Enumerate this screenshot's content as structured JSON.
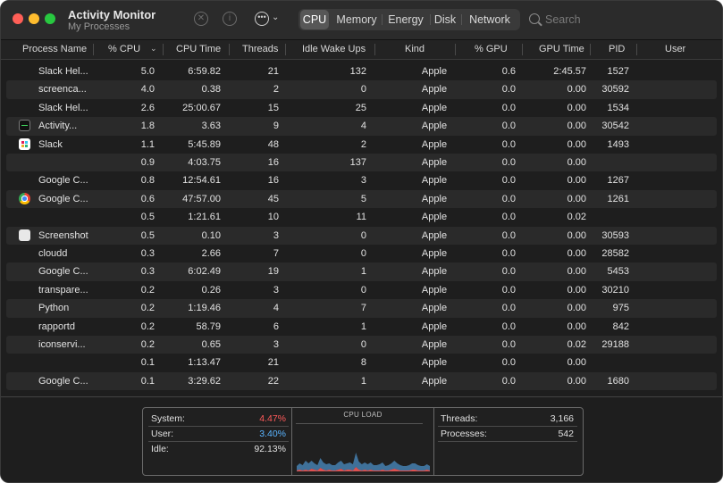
{
  "window": {
    "title": "Activity Monitor",
    "subtitle": "My Processes"
  },
  "toolbar": {
    "stop_icon": "stop-process-icon",
    "info_icon": "inspect-info-icon",
    "more_icon": "ellipsis-more-icon",
    "more_glyph": "•••",
    "chevron_glyph": "⌄"
  },
  "tabs": [
    {
      "label": "CPU",
      "active": true
    },
    {
      "label": "Memory",
      "active": false
    },
    {
      "label": "Energy",
      "active": false
    },
    {
      "label": "Disk",
      "active": false
    },
    {
      "label": "Network",
      "active": false
    }
  ],
  "search": {
    "placeholder": "Search",
    "value": ""
  },
  "columns": {
    "name": "Process Name",
    "cpu": "% CPU",
    "cpu_time": "CPU Time",
    "threads": "Threads",
    "idle_wake_ups": "Idle Wake Ups",
    "kind": "Kind",
    "gpu": "% GPU",
    "gpu_time": "GPU Time",
    "pid": "PID",
    "user": "User",
    "sort_indicator": "⌄"
  },
  "processes": [
    {
      "icon": "",
      "name": "Slack Hel...",
      "cpu": "5.0",
      "cpu_time": "6:59.82",
      "threads": "21",
      "idle": "132",
      "kind": "Apple",
      "gpu": "0.6",
      "gpu_time": "2:45.57",
      "pid": "1527"
    },
    {
      "icon": "",
      "name": "screenca...",
      "cpu": "4.0",
      "cpu_time": "0.38",
      "threads": "2",
      "idle": "0",
      "kind": "Apple",
      "gpu": "0.0",
      "gpu_time": "0.00",
      "pid": "30592"
    },
    {
      "icon": "",
      "name": "Slack Hel...",
      "cpu": "2.6",
      "cpu_time": "25:00.67",
      "threads": "15",
      "idle": "25",
      "kind": "Apple",
      "gpu": "0.0",
      "gpu_time": "0.00",
      "pid": "1534"
    },
    {
      "icon": "activity-monitor-icon",
      "name": "Activity...",
      "cpu": "1.8",
      "cpu_time": "3.63",
      "threads": "9",
      "idle": "4",
      "kind": "Apple",
      "gpu": "0.0",
      "gpu_time": "0.00",
      "pid": "30542"
    },
    {
      "icon": "slack-icon",
      "name": "Slack",
      "cpu": "1.1",
      "cpu_time": "5:45.89",
      "threads": "48",
      "idle": "2",
      "kind": "Apple",
      "gpu": "0.0",
      "gpu_time": "0.00",
      "pid": "1493"
    },
    {
      "icon": "",
      "name": "",
      "cpu": "0.9",
      "cpu_time": "4:03.75",
      "threads": "16",
      "idle": "137",
      "kind": "Apple",
      "gpu": "0.0",
      "gpu_time": "0.00",
      "pid": ""
    },
    {
      "icon": "",
      "name": "Google C...",
      "cpu": "0.8",
      "cpu_time": "12:54.61",
      "threads": "16",
      "idle": "3",
      "kind": "Apple",
      "gpu": "0.0",
      "gpu_time": "0.00",
      "pid": "1267"
    },
    {
      "icon": "chrome-icon",
      "name": "Google C...",
      "cpu": "0.6",
      "cpu_time": "47:57.00",
      "threads": "45",
      "idle": "5",
      "kind": "Apple",
      "gpu": "0.0",
      "gpu_time": "0.00",
      "pid": "1261"
    },
    {
      "icon": "",
      "name": "",
      "cpu": "0.5",
      "cpu_time": "1:21.61",
      "threads": "10",
      "idle": "11",
      "kind": "Apple",
      "gpu": "0.0",
      "gpu_time": "0.02",
      "pid": ""
    },
    {
      "icon": "screenshot-icon",
      "name": "Screenshot",
      "cpu": "0.5",
      "cpu_time": "0.10",
      "threads": "3",
      "idle": "0",
      "kind": "Apple",
      "gpu": "0.0",
      "gpu_time": "0.00",
      "pid": "30593"
    },
    {
      "icon": "",
      "name": "cloudd",
      "cpu": "0.3",
      "cpu_time": "2.66",
      "threads": "7",
      "idle": "0",
      "kind": "Apple",
      "gpu": "0.0",
      "gpu_time": "0.00",
      "pid": "28582"
    },
    {
      "icon": "",
      "name": "Google C...",
      "cpu": "0.3",
      "cpu_time": "6:02.49",
      "threads": "19",
      "idle": "1",
      "kind": "Apple",
      "gpu": "0.0",
      "gpu_time": "0.00",
      "pid": "5453"
    },
    {
      "icon": "",
      "name": "transpare...",
      "cpu": "0.2",
      "cpu_time": "0.26",
      "threads": "3",
      "idle": "0",
      "kind": "Apple",
      "gpu": "0.0",
      "gpu_time": "0.00",
      "pid": "30210"
    },
    {
      "icon": "",
      "name": "Python",
      "cpu": "0.2",
      "cpu_time": "1:19.46",
      "threads": "4",
      "idle": "7",
      "kind": "Apple",
      "gpu": "0.0",
      "gpu_time": "0.00",
      "pid": "975"
    },
    {
      "icon": "",
      "name": "rapportd",
      "cpu": "0.2",
      "cpu_time": "58.79",
      "threads": "6",
      "idle": "1",
      "kind": "Apple",
      "gpu": "0.0",
      "gpu_time": "0.00",
      "pid": "842"
    },
    {
      "icon": "",
      "name": "iconservi...",
      "cpu": "0.2",
      "cpu_time": "0.65",
      "threads": "3",
      "idle": "0",
      "kind": "Apple",
      "gpu": "0.0",
      "gpu_time": "0.02",
      "pid": "29188"
    },
    {
      "icon": "",
      "name": "",
      "cpu": "0.1",
      "cpu_time": "1:13.47",
      "threads": "21",
      "idle": "8",
      "kind": "Apple",
      "gpu": "0.0",
      "gpu_time": "0.00",
      "pid": ""
    },
    {
      "icon": "",
      "name": "Google C...",
      "cpu": "0.1",
      "cpu_time": "3:29.62",
      "threads": "22",
      "idle": "1",
      "kind": "Apple",
      "gpu": "0.0",
      "gpu_time": "0.00",
      "pid": "1680"
    }
  ],
  "summary": {
    "system_label": "System:",
    "system_value": "4.47%",
    "system_color": "#ff5a5a",
    "user_label": "User:",
    "user_value": "3.40%",
    "user_color": "#5ab4ff",
    "idle_label": "Idle:",
    "idle_value": "92.13%",
    "cpu_load_label": "CPU LOAD",
    "threads_label": "Threads:",
    "threads_value": "3,166",
    "processes_label": "Processes:",
    "processes_value": "542"
  },
  "cpu_load_graph": {
    "system": [
      1,
      2,
      1,
      2,
      1,
      3,
      2,
      1,
      4,
      2,
      1,
      2,
      1,
      1,
      2,
      3,
      1,
      2,
      2,
      1,
      5,
      2,
      1,
      2,
      1,
      2,
      1,
      1,
      1,
      2,
      1,
      1,
      2,
      3,
      2,
      1,
      1,
      1,
      1,
      2,
      2,
      1,
      1,
      1,
      2,
      1
    ],
    "user": [
      5,
      7,
      6,
      10,
      8,
      9,
      7,
      6,
      11,
      8,
      7,
      7,
      6,
      6,
      8,
      9,
      7,
      7,
      8,
      7,
      16,
      9,
      7,
      8,
      7,
      8,
      6,
      6,
      7,
      8,
      5,
      6,
      7,
      9,
      7,
      6,
      5,
      5,
      6,
      7,
      7,
      6,
      5,
      5,
      6,
      5
    ]
  }
}
